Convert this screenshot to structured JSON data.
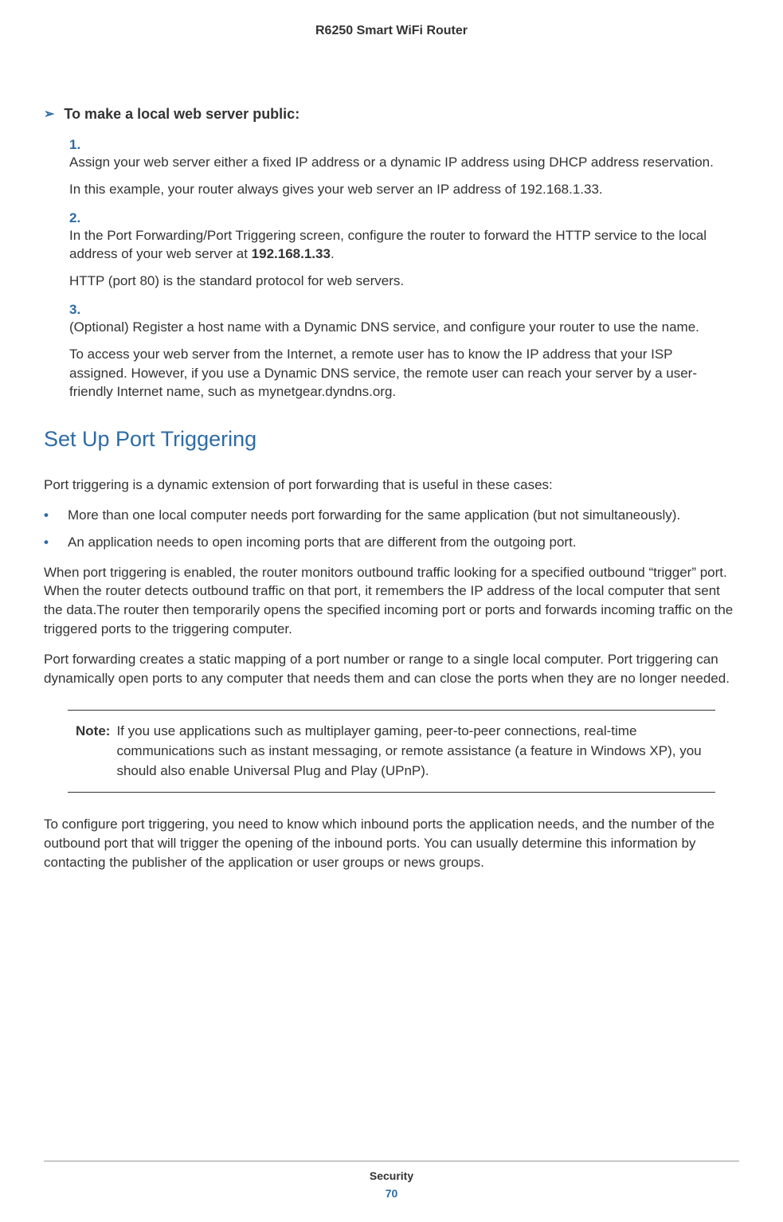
{
  "header": {
    "product_title": "R6250 Smart WiFi Router"
  },
  "procedure": {
    "title": "To make a local web server public:",
    "steps": [
      {
        "num": "1.",
        "text": "Assign your web server either a fixed IP address or a dynamic IP address using DHCP address reservation.",
        "subtext": "In this example, your router always gives your web server an IP address of 192.168.1.33."
      },
      {
        "num": "2.",
        "text_pre": "In the Port Forwarding/Port  Triggering screen, configure the router to forward the HTTP service to the local address of your web server at   ",
        "text_bold": "192.168.1.33",
        "text_post": ".",
        "subtext": "HTTP (port 80) is the standard protocol for web servers."
      },
      {
        "num": "3.",
        "text": "(Optional) Register a host name with a Dynamic DNS service, and configure your router to use the name.",
        "subtext": "To access your web server from the Internet, a remote user has to know the IP address that your ISP assigned. However, if you use a Dynamic DNS service, the remote user can reach your server by a user-friendly Internet name, such as mynetgear.dyndns.org."
      }
    ]
  },
  "section": {
    "heading": "Set Up Port Triggering",
    "intro": "Port triggering is a dynamic extension of port forwarding that is useful in these cases:",
    "bullets": [
      "More than one local computer needs port forwarding for the same application (but not simultaneously).",
      "An application needs to open incoming ports that are different from the outgoing port."
    ],
    "para1": "When port triggering is enabled, the router monitors outbound traffic looking for a specified outbound “trigger” port. When the router detects outbound traffic on that port, it remembers the IP address of the local computer that sent the data.The router then temporarily opens the specified incoming port or ports and forwards incoming traffic on the triggered ports to the triggering computer.",
    "para2": "Port forwarding creates a static mapping of a port number or range to a single local computer. Port triggering can dynamically open ports to any computer that needs them and can close the ports when they are no longer needed.",
    "note_label": "Note:",
    "note_text": "If you use applications such as multiplayer gaming, peer-to-peer connections, real-time communications such as instant messaging, or remote assistance (a feature in Windows XP), you should also enable Universal Plug and Play (UPnP).",
    "para3": "To configure port triggering, you need to know which inbound ports the application needs, and the number of the outbound port that will trigger the opening of the inbound ports. You can usually determine this information by contacting the publisher of the application or user groups or news groups."
  },
  "footer": {
    "section_name": "Security",
    "page_number": "70"
  },
  "colors": {
    "accent": "#2e6ba5",
    "text": "#333333",
    "background": "#ffffff"
  }
}
